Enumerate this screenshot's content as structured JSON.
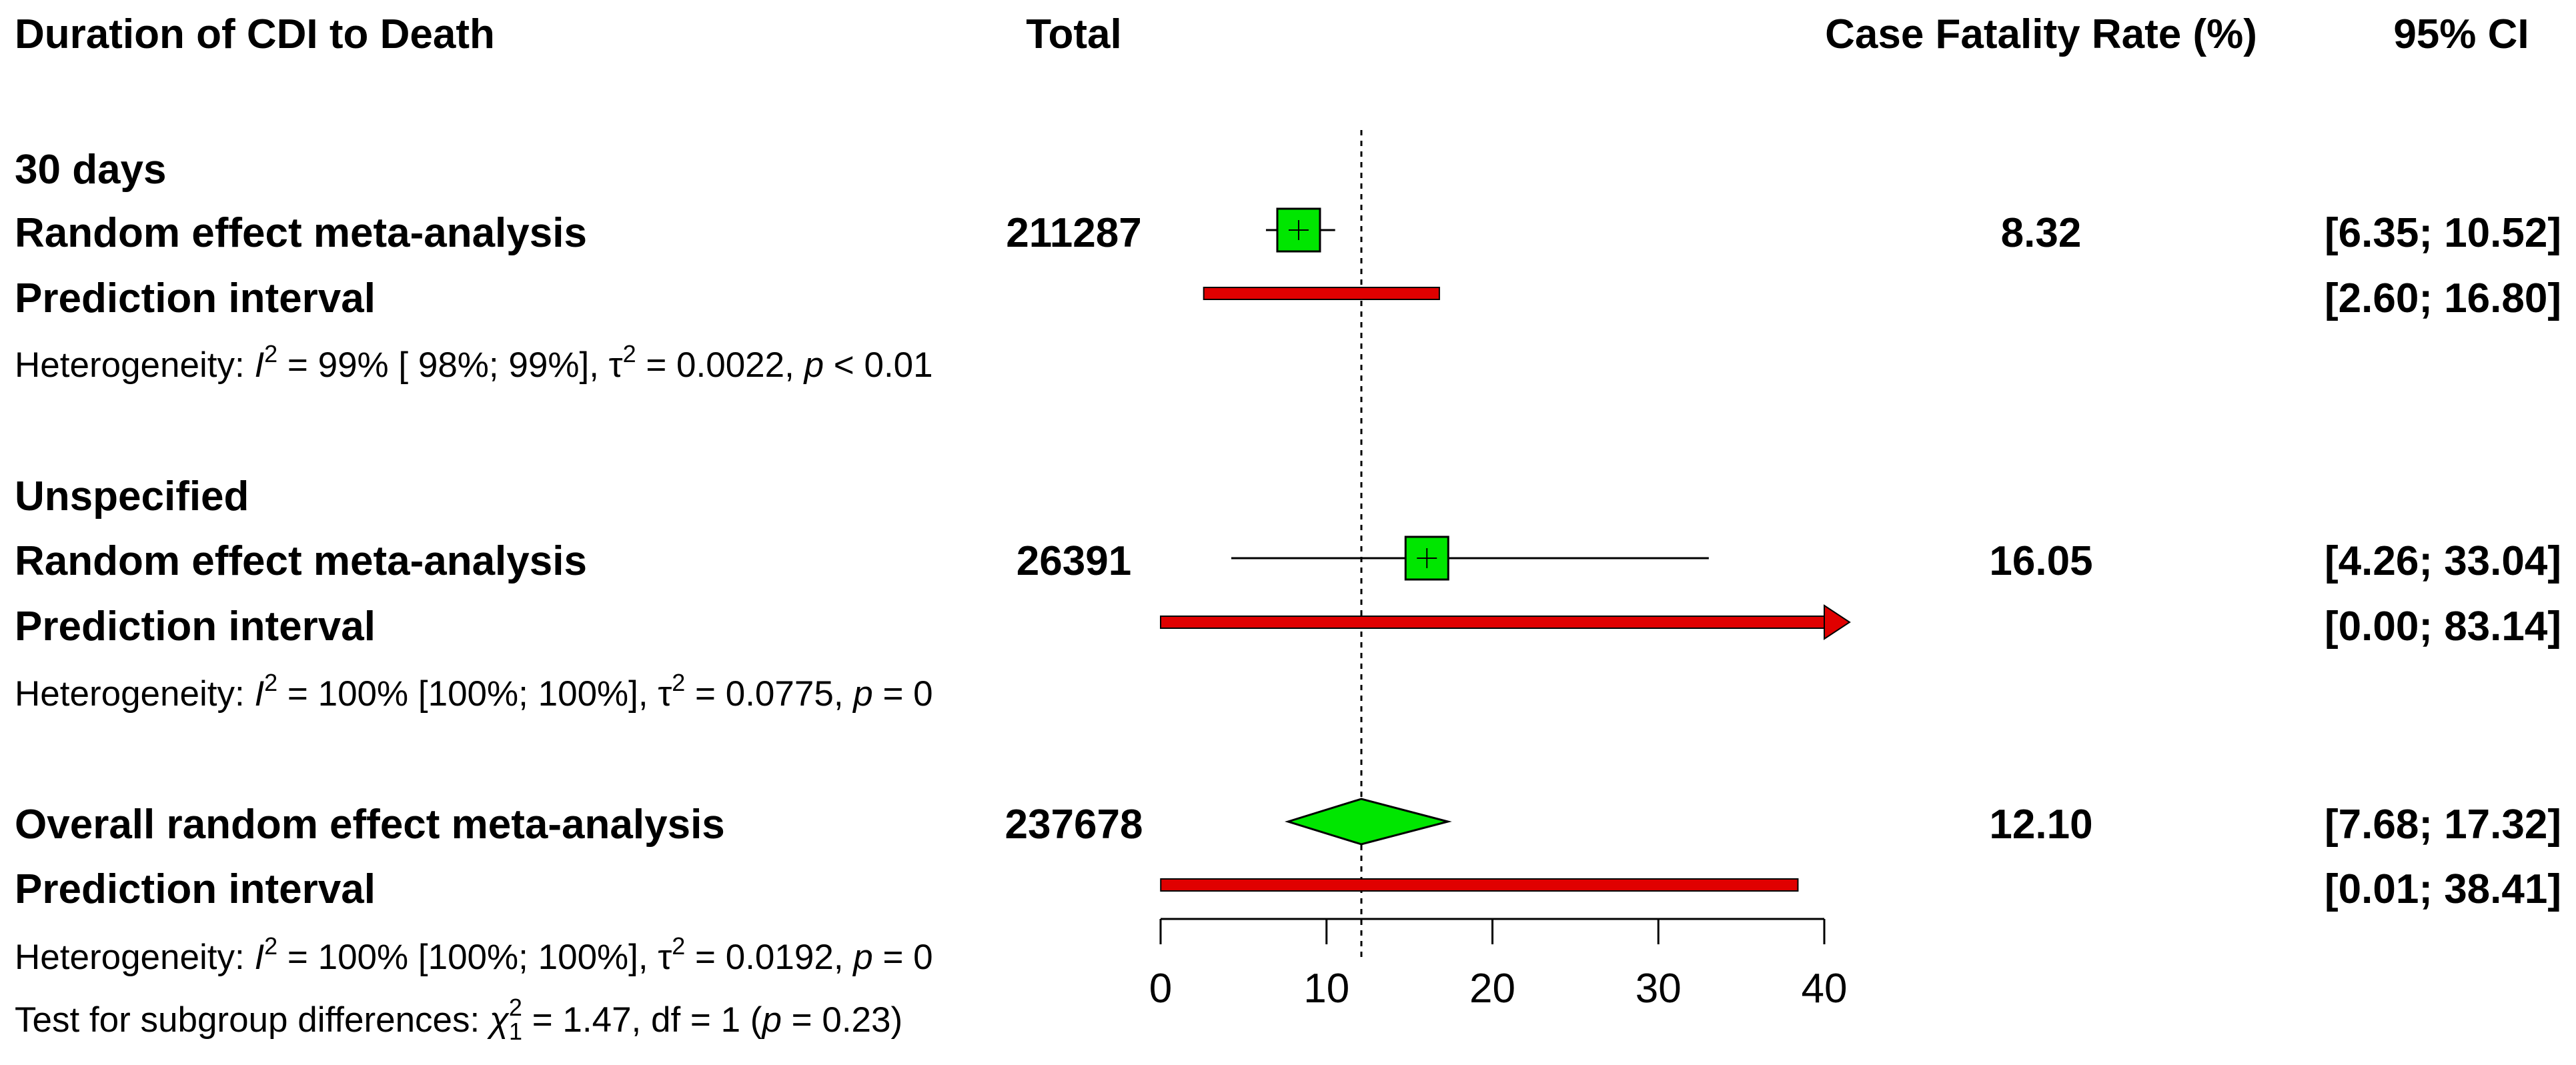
{
  "header": {
    "col_study": "Duration of CDI to Death",
    "col_total": "Total",
    "col_rate": "Case Fatality Rate (%)",
    "col_ci": "95% CI"
  },
  "rows": {
    "g1_title": "30 days",
    "g1_re_label": "Random effect meta-analysis",
    "g1_total": "211287",
    "g1_rate": "8.32",
    "g1_ci": "[6.35; 10.52]",
    "g1_pi_label": "Prediction interval",
    "g1_pi_ci": "[2.60; 16.80]",
    "g1_het_prefix": "Heterogeneity: ",
    "g1_het_I": "I",
    "g1_het_2": "2",
    "g1_het_mid": " = 99% [ 98%; 99%], ",
    "g1_het_tau": "τ",
    "g1_het_tau2": "2",
    "g1_het_end": " = 0.0022, ",
    "g1_het_p": "p",
    "g1_het_pval": " < 0.01",
    "g2_title": "Unspecified",
    "g2_re_label": "Random effect meta-analysis",
    "g2_total": "26391",
    "g2_rate": "16.05",
    "g2_ci": "[4.26; 33.04]",
    "g2_pi_label": "Prediction interval",
    "g2_pi_ci": "[0.00; 83.14]",
    "g2_het_prefix": "Heterogeneity: ",
    "g2_het_I": "I",
    "g2_het_2": "2",
    "g2_het_mid": " = 100% [100%; 100%], ",
    "g2_het_tau": "τ",
    "g2_het_tau2": "2",
    "g2_het_end": " = 0.0775, ",
    "g2_het_p": "p",
    "g2_het_pval": " = 0",
    "ov_label": "Overall random effect meta-analysis",
    "ov_total": "237678",
    "ov_rate": "12.10",
    "ov_ci": "[7.68; 17.32]",
    "ov_pi_label": "Prediction interval",
    "ov_pi_ci": "[0.01; 38.41]",
    "ov_het_prefix": "Heterogeneity: ",
    "ov_het_I": "I",
    "ov_het_2": "2",
    "ov_het_mid": " = 100% [100%; 100%], ",
    "ov_het_tau": "τ",
    "ov_het_tau2": "2",
    "ov_het_end": " = 0.0192, ",
    "ov_het_p": "p",
    "ov_het_pval": " = 0",
    "sub_prefix": "Test for subgroup differences: ",
    "sub_chi": "χ",
    "sub_chi_sup": "2",
    "sub_chi_sub": "1",
    "sub_mid": " = 1.47, df = 1 (",
    "sub_p": "p",
    "sub_end": " = 0.23)"
  },
  "chart_data": {
    "type": "forest",
    "xlim": [
      0,
      40
    ],
    "xticks": [
      "0",
      "10",
      "20",
      "30",
      "40"
    ],
    "reference_line": 12.1,
    "colors": {
      "box": "#00e600",
      "diamond": "#00e600",
      "prediction": "#e00000",
      "line": "#000000"
    },
    "estimates": [
      {
        "group": "30 days",
        "estimate": 8.32,
        "lower": 6.35,
        "upper": 10.52,
        "pi_lower": 2.6,
        "pi_upper": 16.8,
        "pi_arrow": false,
        "shape": "square"
      },
      {
        "group": "Unspecified",
        "estimate": 16.05,
        "lower": 4.26,
        "upper": 33.04,
        "pi_lower": 0.0,
        "pi_upper": 83.14,
        "pi_arrow": true,
        "shape": "square"
      },
      {
        "group": "Overall",
        "estimate": 12.1,
        "lower": 7.68,
        "upper": 17.32,
        "pi_lower": 0.01,
        "pi_upper": 38.41,
        "pi_arrow": false,
        "shape": "diamond"
      }
    ]
  }
}
